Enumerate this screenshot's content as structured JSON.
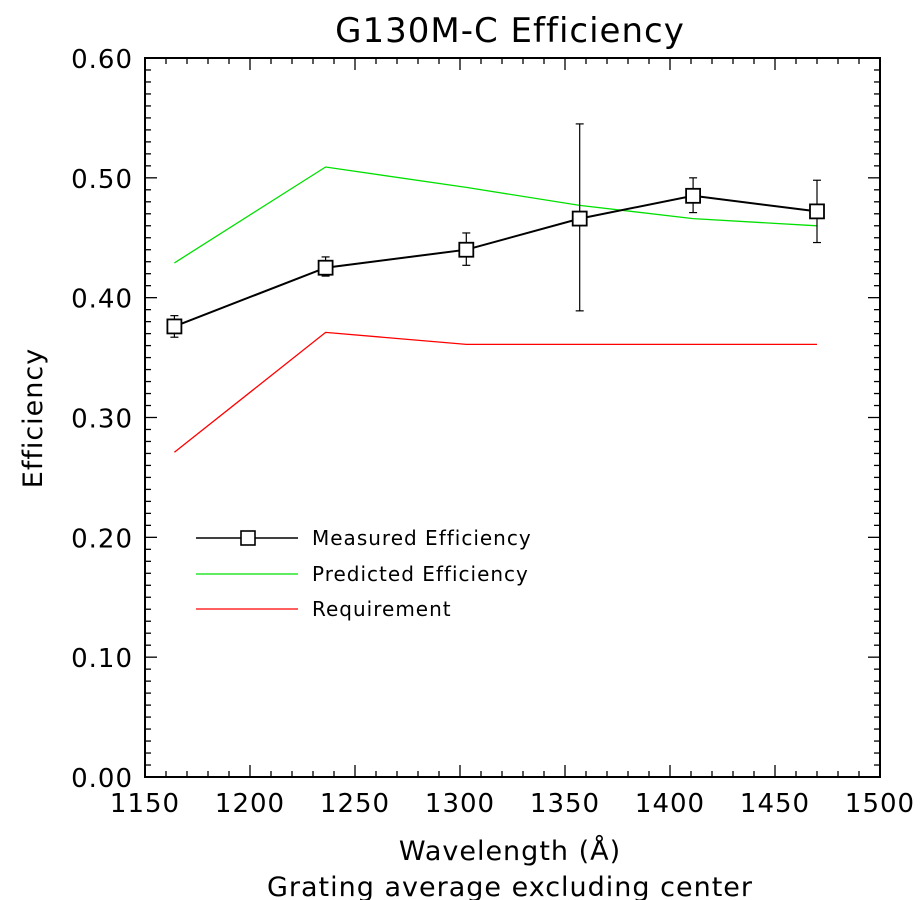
{
  "chart_data": {
    "type": "line",
    "title": "G130M-C Efficiency",
    "xlabel": "Wavelength (Å)",
    "subtitle": "Grating average excluding center",
    "ylabel": "Efficiency",
    "xlim": [
      1150,
      1500
    ],
    "ylim": [
      0.0,
      0.6
    ],
    "x_ticks": [
      "1150",
      "1200",
      "1250",
      "1300",
      "1350",
      "1400",
      "1450",
      "1500"
    ],
    "y_ticks": [
      "0.00",
      "0.10",
      "0.20",
      "0.30",
      "0.40",
      "0.50",
      "0.60"
    ],
    "grid": false,
    "legend_position": "center-left",
    "series": [
      {
        "name": "Measured Efficiency",
        "color": "#000000",
        "marker": "square",
        "x": [
          1164,
          1236,
          1303,
          1357,
          1411,
          1470
        ],
        "y": [
          0.376,
          0.425,
          0.44,
          0.466,
          0.485,
          0.472
        ],
        "err_low": [
          0.367,
          0.418,
          0.427,
          0.389,
          0.471,
          0.446
        ],
        "err_high": [
          0.385,
          0.434,
          0.454,
          0.545,
          0.5,
          0.498
        ]
      },
      {
        "name": "Predicted Efficiency",
        "color": "#00e000",
        "x": [
          1164,
          1236,
          1303,
          1357,
          1411,
          1470
        ],
        "y": [
          0.429,
          0.509,
          0.492,
          0.477,
          0.466,
          0.46
        ]
      },
      {
        "name": "Requirement",
        "color": "#ff0000",
        "x": [
          1164,
          1236,
          1303,
          1357,
          1411,
          1470
        ],
        "y": [
          0.271,
          0.371,
          0.361,
          0.361,
          0.361,
          0.361
        ]
      }
    ]
  }
}
